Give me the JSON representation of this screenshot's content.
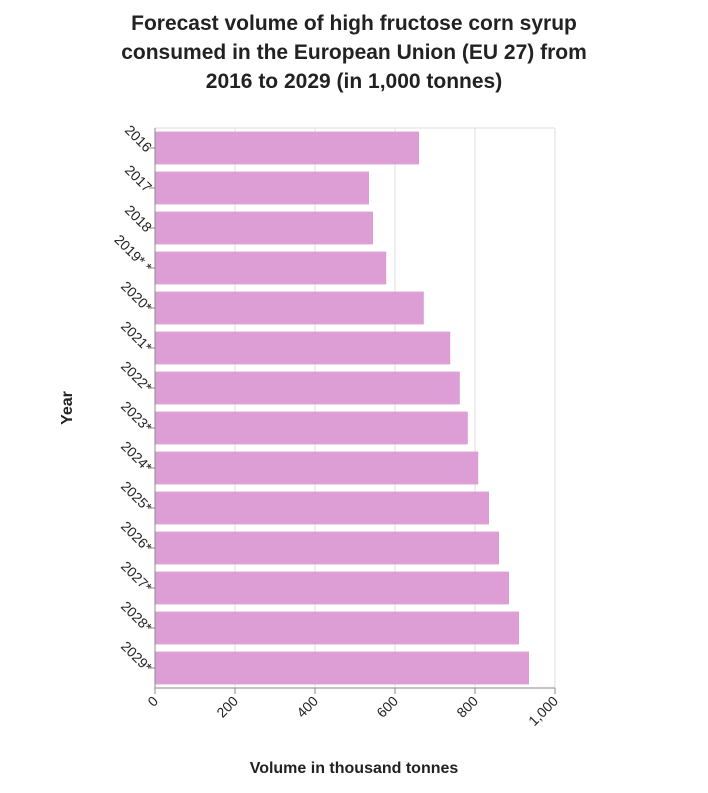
{
  "chart_data": {
    "type": "bar",
    "orientation": "horizontal",
    "title_lines": [
      "Forecast volume of high fructose corn syrup",
      "consumed in the European Union (EU 27) from",
      "2016 to 2029 (in 1,000 tonnes)"
    ],
    "xlabel": "Volume in thousand tonnes",
    "ylabel": "Year",
    "categories": [
      "2016",
      "2017",
      "2018",
      "2019* *",
      "2020*",
      "2021*",
      "2022*",
      "2023*",
      "2024*",
      "2025*",
      "2026*",
      "2027*",
      "2028*",
      "2029*"
    ],
    "values": [
      660,
      535,
      545,
      578,
      672,
      738,
      762,
      782,
      808,
      835,
      860,
      885,
      910,
      935
    ],
    "xlim": [
      0,
      1000
    ],
    "xticks": [
      0,
      200,
      400,
      600,
      800,
      1000
    ],
    "xtick_labels": [
      "0",
      "200",
      "400",
      "600",
      "800",
      "1,000"
    ],
    "grid": true,
    "bar_color": "#dd9ed6"
  }
}
